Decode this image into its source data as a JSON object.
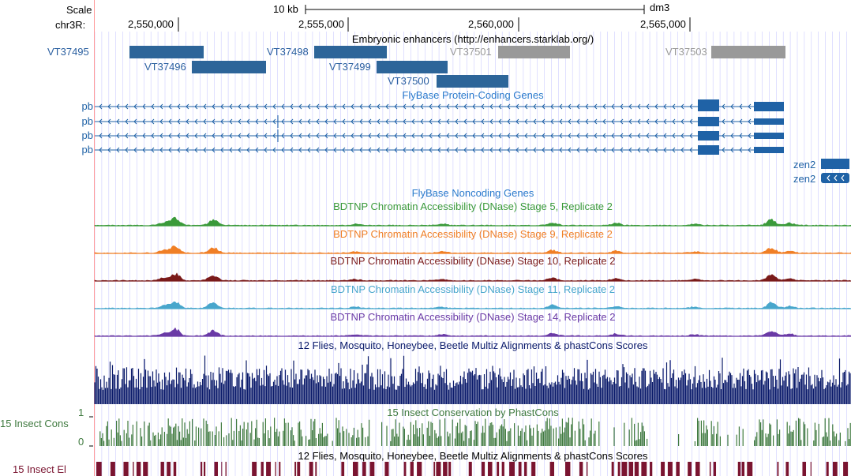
{
  "colors": {
    "gene_blue": "#1f62a6",
    "enh_blue": "#2d6599",
    "gray": "#999999",
    "label_blue": "#2a5fa0",
    "stage5": "#3a9a3a",
    "stage9": "#f07f26",
    "stage10": "#7a1a1a",
    "stage11": "#48a6cc",
    "stage14": "#6a3aa6",
    "multiz": "#0a1a6a",
    "phast": "#3f7a3f",
    "elements": "#7a1430",
    "grid": "#ccccff",
    "redline": "#ff9999"
  },
  "scale": {
    "label": "Scale",
    "bar_label": "10 kb",
    "assembly": "dm3"
  },
  "chrom": {
    "label": "chr3R:",
    "ticks": [
      "2,550,000",
      "2,555,000",
      "2,560,000",
      "2,565,000"
    ]
  },
  "enhancers": {
    "title": "Embryonic enhancers (http://enhancers.starklab.org/)",
    "items": [
      {
        "name": "VT37495",
        "color": "blue"
      },
      {
        "name": "VT37496",
        "color": "blue"
      },
      {
        "name": "VT37498",
        "color": "blue"
      },
      {
        "name": "VT37499",
        "color": "blue"
      },
      {
        "name": "VT37500",
        "color": "blue"
      },
      {
        "name": "VT37501",
        "color": "gray"
      },
      {
        "name": "VT37503",
        "color": "gray"
      }
    ]
  },
  "genes": {
    "title": "FlyBase Protein-Coding Genes",
    "pb": [
      "pb",
      "pb",
      "pb",
      "pb"
    ],
    "zen": [
      "zen2",
      "zen2"
    ]
  },
  "noncoding": {
    "title": "FlyBase Noncoding Genes"
  },
  "dnase": [
    {
      "title": "BDTNP Chromatin Accessibility (DNase) Stage 5, Replicate 2",
      "color_key": "stage5"
    },
    {
      "title": "BDTNP Chromatin Accessibility (DNase) Stage 9, Replicate 2",
      "color_key": "stage9"
    },
    {
      "title": "BDTNP Chromatin Accessibility (DNase) Stage 10, Replicate 2",
      "color_key": "stage10"
    },
    {
      "title": "BDTNP Chromatin Accessibility (DNase) Stage 11, Replicate 2",
      "color_key": "stage11"
    },
    {
      "title": "BDTNP Chromatin Accessibility (DNase) Stage 14, Replicate 2",
      "color_key": "stage14"
    }
  ],
  "multiz": {
    "title": "12 Flies, Mosquito, Honeybee, Beetle Multiz Alignments & phastCons Scores"
  },
  "phastcons": {
    "title": "15 Insect Conservation by PhastCons",
    "side_label": "15 Insect Cons",
    "max": "1",
    "min": "0"
  },
  "elements": {
    "title": "12 Flies, Mosquito, Honeybee, Beetle Multiz Alignments & phastCons Scores",
    "side_label": "15 Insect El"
  }
}
